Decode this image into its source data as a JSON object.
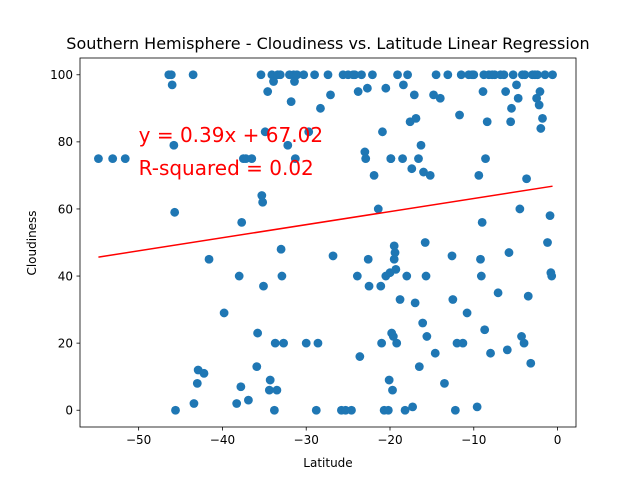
{
  "chart_data": {
    "type": "scatter",
    "title": "Southern Hemisphere - Cloudiness vs. Latitude Linear Regression",
    "xlabel": "Latitude",
    "ylabel": "Cloudiness",
    "xlim": [
      -57.0,
      2.2
    ],
    "ylim": [
      -5,
      105
    ],
    "xticks": [
      -50,
      -40,
      -30,
      -20,
      -10,
      0
    ],
    "xtick_labels": [
      "−50",
      "−40",
      "−30",
      "−20",
      "−10",
      "0"
    ],
    "yticks": [
      0,
      20,
      40,
      60,
      80,
      100
    ],
    "ytick_labels": [
      "0",
      "20",
      "40",
      "60",
      "80",
      "100"
    ],
    "grid": false,
    "series": [
      {
        "color": "#1f77b4",
        "points": [
          [
            -54.8,
            75
          ],
          [
            -53.1,
            75
          ],
          [
            -51.6,
            75
          ],
          [
            -46.4,
            100
          ],
          [
            -46.1,
            100
          ],
          [
            -46.0,
            97
          ],
          [
            -45.8,
            79
          ],
          [
            -45.7,
            59
          ],
          [
            -45.6,
            0
          ],
          [
            -43.5,
            100
          ],
          [
            -43.4,
            2
          ],
          [
            -43.0,
            8
          ],
          [
            -42.9,
            12
          ],
          [
            -42.2,
            11
          ],
          [
            -41.6,
            45
          ],
          [
            -39.8,
            29
          ],
          [
            -38.3,
            2
          ],
          [
            -38.0,
            40
          ],
          [
            -37.8,
            7
          ],
          [
            -37.7,
            56
          ],
          [
            -37.5,
            75
          ],
          [
            -37.2,
            75
          ],
          [
            -36.9,
            3
          ],
          [
            -36.5,
            75
          ],
          [
            -35.9,
            13
          ],
          [
            -35.8,
            23
          ],
          [
            -35.4,
            100
          ],
          [
            -35.3,
            64
          ],
          [
            -35.2,
            62
          ],
          [
            -35.1,
            37
          ],
          [
            -34.9,
            83
          ],
          [
            -34.6,
            95
          ],
          [
            -34.4,
            6
          ],
          [
            -34.3,
            9
          ],
          [
            -34.1,
            100
          ],
          [
            -33.9,
            98
          ],
          [
            -33.8,
            0
          ],
          [
            -33.7,
            20
          ],
          [
            -33.5,
            6
          ],
          [
            -33.4,
            100
          ],
          [
            -33.1,
            100
          ],
          [
            -33.0,
            48
          ],
          [
            -32.9,
            40
          ],
          [
            -32.7,
            20
          ],
          [
            -32.2,
            79
          ],
          [
            -32.0,
            100
          ],
          [
            -31.8,
            92
          ],
          [
            -31.5,
            100
          ],
          [
            -31.4,
            98
          ],
          [
            -31.3,
            75
          ],
          [
            -31.1,
            100
          ],
          [
            -30.3,
            100
          ],
          [
            -30.0,
            20
          ],
          [
            -29.7,
            83
          ],
          [
            -29.0,
            100
          ],
          [
            -28.8,
            0
          ],
          [
            -28.6,
            20
          ],
          [
            -28.3,
            90
          ],
          [
            -27.4,
            100
          ],
          [
            -27.1,
            94
          ],
          [
            -26.8,
            46
          ],
          [
            -25.8,
            0
          ],
          [
            -25.6,
            100
          ],
          [
            -25.3,
            0
          ],
          [
            -25.0,
            100
          ],
          [
            -24.6,
            0
          ],
          [
            -24.4,
            100
          ],
          [
            -24.2,
            100
          ],
          [
            -23.9,
            40
          ],
          [
            -23.8,
            95
          ],
          [
            -23.6,
            16
          ],
          [
            -23.4,
            100
          ],
          [
            -23.0,
            77
          ],
          [
            -22.9,
            75
          ],
          [
            -22.7,
            96
          ],
          [
            -22.6,
            45
          ],
          [
            -22.5,
            37
          ],
          [
            -22.1,
            100
          ],
          [
            -21.9,
            70
          ],
          [
            -21.4,
            60
          ],
          [
            -21.1,
            37
          ],
          [
            -21.0,
            20
          ],
          [
            -20.9,
            83
          ],
          [
            -20.7,
            0
          ],
          [
            -20.5,
            96
          ],
          [
            -20.5,
            40
          ],
          [
            -20.2,
            0
          ],
          [
            -20.1,
            9
          ],
          [
            -20.0,
            41
          ],
          [
            -19.9,
            75
          ],
          [
            -19.9,
            75
          ],
          [
            -19.8,
            23
          ],
          [
            -19.7,
            6
          ],
          [
            -19.6,
            22
          ],
          [
            -19.5,
            45
          ],
          [
            -19.5,
            49
          ],
          [
            -19.4,
            47
          ],
          [
            -19.3,
            42
          ],
          [
            -19.2,
            20
          ],
          [
            -19.1,
            100
          ],
          [
            -18.8,
            33
          ],
          [
            -18.5,
            75
          ],
          [
            -18.4,
            97
          ],
          [
            -18.2,
            0
          ],
          [
            -18.0,
            40
          ],
          [
            -17.9,
            100
          ],
          [
            -17.6,
            86
          ],
          [
            -17.4,
            72
          ],
          [
            -17.3,
            1
          ],
          [
            -17.1,
            94
          ],
          [
            -17.0,
            32
          ],
          [
            -16.9,
            87
          ],
          [
            -16.6,
            75
          ],
          [
            -16.5,
            13
          ],
          [
            -16.3,
            79
          ],
          [
            -16.1,
            26
          ],
          [
            -16.0,
            71
          ],
          [
            -15.8,
            50
          ],
          [
            -15.7,
            40
          ],
          [
            -15.6,
            22
          ],
          [
            -15.2,
            70
          ],
          [
            -14.8,
            94
          ],
          [
            -14.6,
            17
          ],
          [
            -14.5,
            100
          ],
          [
            -14.0,
            93
          ],
          [
            -13.5,
            8
          ],
          [
            -13.1,
            100
          ],
          [
            -12.6,
            46
          ],
          [
            -12.5,
            33
          ],
          [
            -12.2,
            0
          ],
          [
            -12.0,
            20
          ],
          [
            -11.7,
            88
          ],
          [
            -11.5,
            100
          ],
          [
            -11.3,
            20
          ],
          [
            -10.8,
            29
          ],
          [
            -10.6,
            100
          ],
          [
            -10.2,
            100
          ],
          [
            -10.0,
            100
          ],
          [
            -9.6,
            1
          ],
          [
            -9.4,
            70
          ],
          [
            -9.2,
            45
          ],
          [
            -9.1,
            40
          ],
          [
            -9.0,
            56
          ],
          [
            -8.9,
            95
          ],
          [
            -8.8,
            100
          ],
          [
            -8.7,
            24
          ],
          [
            -8.6,
            75
          ],
          [
            -8.4,
            86
          ],
          [
            -8.2,
            100
          ],
          [
            -8.0,
            17
          ],
          [
            -7.8,
            100
          ],
          [
            -7.5,
            100
          ],
          [
            -7.1,
            35
          ],
          [
            -6.8,
            100
          ],
          [
            -6.4,
            100
          ],
          [
            -6.2,
            95
          ],
          [
            -6.0,
            18
          ],
          [
            -5.8,
            47
          ],
          [
            -5.6,
            86
          ],
          [
            -5.5,
            90
          ],
          [
            -5.3,
            100
          ],
          [
            -4.9,
            97
          ],
          [
            -4.7,
            93
          ],
          [
            -4.5,
            60
          ],
          [
            -4.3,
            22
          ],
          [
            -4.2,
            100
          ],
          [
            -4.0,
            20
          ],
          [
            -3.9,
            100
          ],
          [
            -3.7,
            69
          ],
          [
            -3.5,
            34
          ],
          [
            -3.2,
            14
          ],
          [
            -3.0,
            100
          ],
          [
            -2.7,
            100
          ],
          [
            -2.5,
            93
          ],
          [
            -2.4,
            100
          ],
          [
            -2.2,
            91
          ],
          [
            -2.1,
            95
          ],
          [
            -2.0,
            84
          ],
          [
            -1.8,
            87
          ],
          [
            -1.5,
            100
          ],
          [
            -1.2,
            50
          ],
          [
            -0.9,
            58
          ],
          [
            -0.8,
            41
          ],
          [
            -0.7,
            40
          ],
          [
            -0.6,
            100
          ]
        ]
      }
    ],
    "regression": {
      "slope": 0.39,
      "intercept": 67.02,
      "x_range": [
        -54.8,
        -0.6
      ],
      "color": "#ff0000",
      "equation_label": "y = 0.39x + 67.02",
      "r_squared_label": "R-squared = 0.02",
      "label_anchor": [
        -50,
        80
      ]
    }
  }
}
